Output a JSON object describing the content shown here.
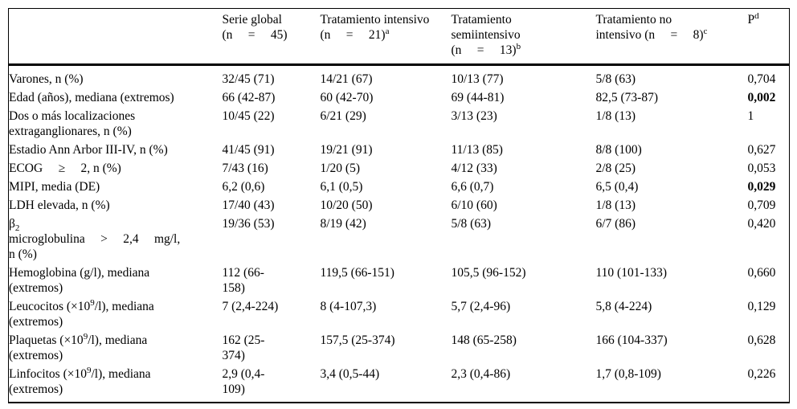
{
  "colors": {
    "background": "#ffffff",
    "text": "#000000",
    "rule": "#000000"
  },
  "table": {
    "header": {
      "row_label_header": "",
      "columns": [
        {
          "label": "Serie global\n(n  =  45)",
          "sup": ""
        },
        {
          "label": "Tratamiento intensivo\n(n  =  21)",
          "sup": "a"
        },
        {
          "label": "Tratamiento\nsemiintensivo\n(n  =  13)",
          "sup": "b"
        },
        {
          "label": "Tratamiento no\nintensivo (n  =  8)",
          "sup": "c"
        },
        {
          "label": "P",
          "sup": "d"
        }
      ]
    },
    "rows": [
      {
        "label": [
          {
            "t": "Varones, n (%)"
          }
        ],
        "cells": [
          "32/45 (71)",
          "14/21 (67)",
          "10/13 (77)",
          "5/8 (63)"
        ],
        "p": "0,704",
        "p_bold": false
      },
      {
        "label": [
          {
            "t": "Edad (años), mediana (extremos)"
          }
        ],
        "cells": [
          "66 (42-87)",
          "60 (42-70)",
          "69 (44-81)",
          "82,5 (73-87)"
        ],
        "p": "0,002",
        "p_bold": true
      },
      {
        "label": [
          {
            "t": "Dos o más localizaciones\nextraganglionares, n (%)"
          }
        ],
        "cells": [
          "10/45 (22)",
          "6/21 (29)",
          "3/13 (23)",
          "1/8 (13)"
        ],
        "p": "1",
        "p_bold": false
      },
      {
        "label": [
          {
            "t": "Estadio Ann Arbor III-IV, n (%)"
          }
        ],
        "cells": [
          "41/45 (91)",
          "19/21 (91)",
          "11/13 (85)",
          "8/8 (100)"
        ],
        "p": "0,627",
        "p_bold": false
      },
      {
        "label": [
          {
            "t": "ECOG  ≥  2, n (%)"
          }
        ],
        "cells": [
          "7/43 (16)",
          "1/20 (5)",
          "4/12 (33)",
          "2/8 (25)"
        ],
        "p": "0,053",
        "p_bold": false
      },
      {
        "label": [
          {
            "t": "MIPI, media (DE)"
          }
        ],
        "cells": [
          "6,2 (0,6)",
          "6,1 (0,5)",
          "6,6 (0,7)",
          "6,5 (0,4)"
        ],
        "p": "0,029",
        "p_bold": true
      },
      {
        "label": [
          {
            "t": "LDH elevada, n (%)"
          }
        ],
        "cells": [
          "17/40 (43)",
          "10/20 (50)",
          "6/10 (60)",
          "1/8 (13)"
        ],
        "p": "0,709",
        "p_bold": false
      },
      {
        "label": [
          {
            "t": "β"
          },
          {
            "t": "2",
            "s": "sub"
          },
          {
            "t": "\nmicroglobulina  >  2,4  mg/l,\nn (%)"
          }
        ],
        "cells": [
          "19/36 (53)",
          "8/19 (42)",
          "5/8 (63)",
          "6/7 (86)"
        ],
        "p": "0,420",
        "p_bold": false
      },
      {
        "label": [
          {
            "t": "Hemoglobina (g/l), mediana\n(extremos)"
          }
        ],
        "cells": [
          "112 (66-\n158)",
          "119,5 (66-151)",
          "105,5 (96-152)",
          "110 (101-133)"
        ],
        "p": "0,660",
        "p_bold": false
      },
      {
        "label": [
          {
            "t": "Leucocitos (×10"
          },
          {
            "t": "9",
            "s": "sup"
          },
          {
            "t": "/l), mediana\n(extremos)"
          }
        ],
        "cells": [
          "7 (2,4-224)",
          "8 (4-107,3)",
          "5,7 (2,4-96)",
          "5,8 (4-224)"
        ],
        "p": "0,129",
        "p_bold": false
      },
      {
        "label": [
          {
            "t": "Plaquetas (×10"
          },
          {
            "t": "9",
            "s": "sup"
          },
          {
            "t": "/l), mediana\n(extremos)"
          }
        ],
        "cells": [
          "162 (25-\n374)",
          "157,5 (25-374)",
          "148 (65-258)",
          "166 (104-337)"
        ],
        "p": "0,628",
        "p_bold": false
      },
      {
        "label": [
          {
            "t": "Linfocitos (×10"
          },
          {
            "t": "9",
            "s": "sup"
          },
          {
            "t": "/l), mediana\n(extremos)"
          }
        ],
        "cells": [
          "2,9 (0,4-\n109)",
          "3,4 (0,5-44)",
          "2,3 (0,4-86)",
          "1,7 (0,8-109)"
        ],
        "p": "0,226",
        "p_bold": false
      }
    ]
  }
}
